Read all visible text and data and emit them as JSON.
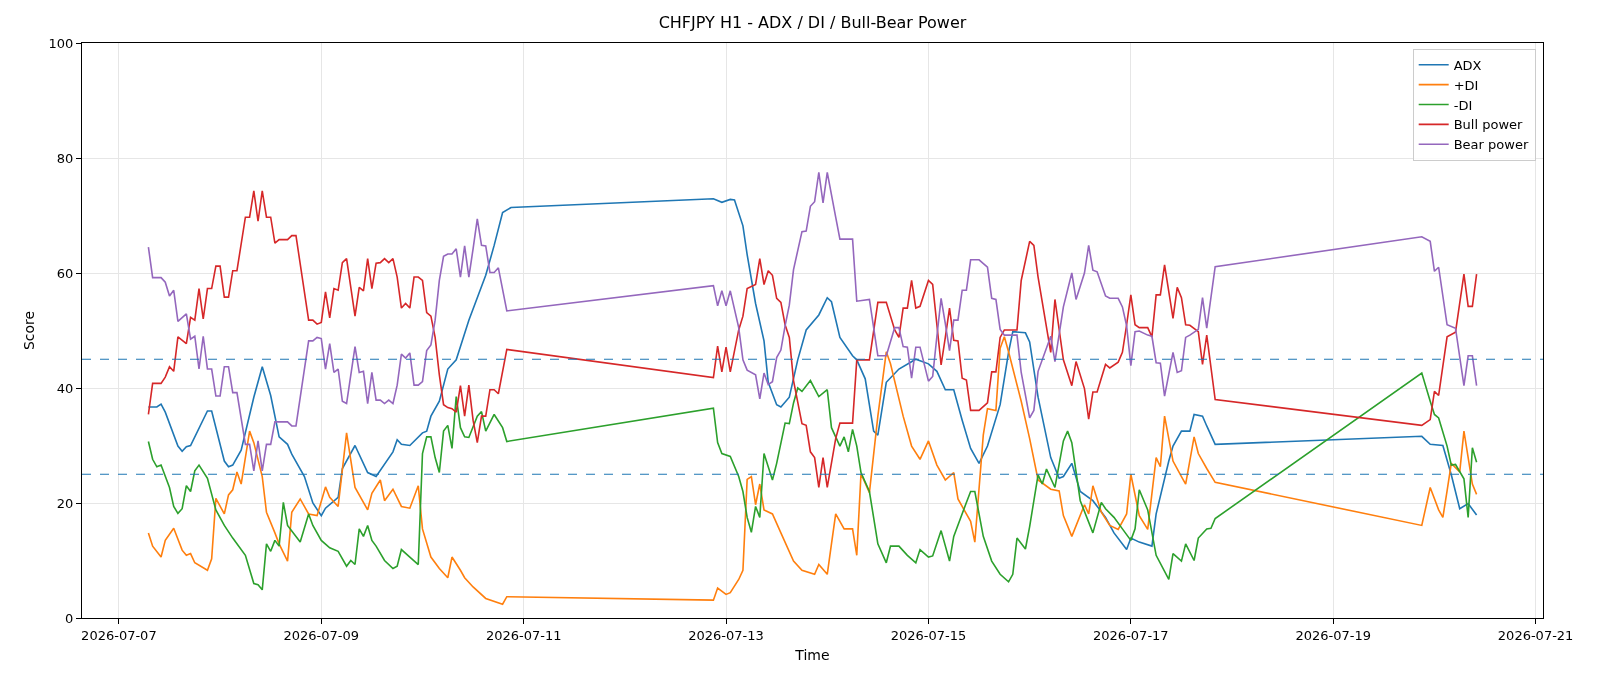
{
  "chart_data": {
    "type": "line",
    "title": "CHFJPY H1 - ADX / DI / Bull-Bear Power",
    "xlabel": "Time",
    "ylabel": "Score",
    "xlim": [
      "2026-07-06T15:15",
      "2026-07-21T01:45"
    ],
    "xticks": [
      "2026-07-07",
      "2026-07-09",
      "2026-07-11",
      "2026-07-13",
      "2026-07-15",
      "2026-07-17",
      "2026-07-19",
      "2026-07-21"
    ],
    "ylim": [
      0,
      100
    ],
    "yticks": [
      0,
      20,
      40,
      60,
      80,
      100
    ],
    "grid": true,
    "legend": "top right",
    "marker": "none",
    "line_style": "solid",
    "ref_lines": [
      {
        "axis": "y",
        "value": 45,
        "color": "#1f77b4",
        "line_style": "dashed"
      },
      {
        "axis": "y",
        "value": 25,
        "color": "#1f77b4",
        "line_style": "dashed"
      }
    ],
    "x": [
      "2026-07-07T07:00",
      "2026-07-07T08:00",
      "2026-07-07T10:00",
      "2026-07-07T11:00",
      "2026-07-07T12:00",
      "2026-07-07T13:00",
      "2026-07-07T14:00",
      "2026-07-07T16:00",
      "2026-07-07T17:00",
      "2026-07-07T18:00",
      "2026-07-07T19:00",
      "2026-07-07T20:00",
      "2026-07-07T21:00",
      "2026-07-07T22:00",
      "2026-07-07T23:00",
      "2026-07-08T00:00",
      "2026-07-08T01:00",
      "2026-07-08T02:00",
      "2026-07-08T03:00",
      "2026-07-08T04:00",
      "2026-07-08T06:00",
      "2026-07-08T07:00",
      "2026-07-08T08:00",
      "2026-07-08T09:00",
      "2026-07-08T10:00",
      "2026-07-08T11:00",
      "2026-07-08T12:00",
      "2026-07-08T13:00",
      "2026-07-08T14:00",
      "2026-07-08T16:00",
      "2026-07-08T17:00",
      "2026-07-08T18:00",
      "2026-07-08T21:00",
      "2026-07-08T22:00",
      "2026-07-08T23:00",
      "2026-07-09T00:00",
      "2026-07-09T01:00",
      "2026-07-09T02:00",
      "2026-07-09T03:00",
      "2026-07-09T04:00",
      "2026-07-09T05:00",
      "2026-07-09T06:00",
      "2026-07-09T08:00",
      "2026-07-09T09:00",
      "2026-07-09T10:00",
      "2026-07-09T11:00",
      "2026-07-09T12:00",
      "2026-07-09T13:00",
      "2026-07-09T14:00",
      "2026-07-09T15:00",
      "2026-07-09T16:00",
      "2026-07-09T17:00",
      "2026-07-09T18:00",
      "2026-07-09T19:00",
      "2026-07-09T20:00",
      "2026-07-09T21:00",
      "2026-07-09T22:00",
      "2026-07-09T23:00",
      "2026-07-10T00:00",
      "2026-07-10T01:00",
      "2026-07-10T02:00",
      "2026-07-10T03:00",
      "2026-07-10T04:00",
      "2026-07-10T05:00",
      "2026-07-10T06:00",
      "2026-07-10T07:00",
      "2026-07-10T08:00",
      "2026-07-10T09:00",
      "2026-07-10T10:00",
      "2026-07-10T11:00",
      "2026-07-10T12:00",
      "2026-07-10T13:00",
      "2026-07-10T14:00",
      "2026-07-10T15:00",
      "2026-07-10T16:00",
      "2026-07-10T17:00",
      "2026-07-10T18:00",
      "2026-07-10T20:00",
      "2026-07-12T21:00",
      "2026-07-12T22:00",
      "2026-07-12T23:00",
      "2026-07-13T00:00",
      "2026-07-13T01:00",
      "2026-07-13T03:00",
      "2026-07-13T04:00",
      "2026-07-13T05:00",
      "2026-07-13T07:00",
      "2026-07-13T08:00",
      "2026-07-13T09:00",
      "2026-07-13T10:00",
      "2026-07-13T11:00",
      "2026-07-13T12:00",
      "2026-07-13T13:00",
      "2026-07-13T14:00",
      "2026-07-13T15:00",
      "2026-07-13T16:00",
      "2026-07-13T18:00",
      "2026-07-13T19:00",
      "2026-07-13T20:00",
      "2026-07-13T21:00",
      "2026-07-13T22:00",
      "2026-07-13T23:00",
      "2026-07-14T00:00",
      "2026-07-14T02:00",
      "2026-07-14T03:00",
      "2026-07-14T06:00",
      "2026-07-14T07:00",
      "2026-07-14T10:00",
      "2026-07-14T12:00",
      "2026-07-14T14:00",
      "2026-07-14T16:00",
      "2026-07-14T17:00",
      "2026-07-14T18:00",
      "2026-07-14T19:00",
      "2026-07-14T20:00",
      "2026-07-14T21:00",
      "2026-07-14T22:00",
      "2026-07-15T00:00",
      "2026-07-15T01:00",
      "2026-07-15T02:00",
      "2026-07-15T03:00",
      "2026-07-15T04:00",
      "2026-07-15T05:00",
      "2026-07-15T06:00",
      "2026-07-15T07:00",
      "2026-07-15T08:00",
      "2026-07-15T09:00",
      "2026-07-15T10:00",
      "2026-07-15T12:00",
      "2026-07-15T14:00",
      "2026-07-15T15:00",
      "2026-07-15T16:00",
      "2026-07-15T17:00",
      "2026-07-15T18:00",
      "2026-07-15T21:00",
      "2026-07-15T22:00",
      "2026-07-16T00:00",
      "2026-07-16T01:00",
      "2026-07-16T02:00",
      "2026-07-16T05:00",
      "2026-07-16T06:00",
      "2026-07-16T08:00",
      "2026-07-16T10:00",
      "2026-07-16T11:00",
      "2026-07-16T13:00",
      "2026-07-16T14:00",
      "2026-07-16T15:00",
      "2026-07-16T16:00",
      "2026-07-16T18:00",
      "2026-07-16T19:00",
      "2026-07-16T21:00",
      "2026-07-16T22:00",
      "2026-07-16T23:00",
      "2026-07-17T00:00",
      "2026-07-17T01:00",
      "2026-07-17T02:00",
      "2026-07-17T04:00",
      "2026-07-17T05:00",
      "2026-07-17T06:00",
      "2026-07-17T07:00",
      "2026-07-17T08:00",
      "2026-07-17T10:00",
      "2026-07-17T11:00",
      "2026-07-17T12:00",
      "2026-07-17T13:00",
      "2026-07-17T14:00",
      "2026-07-17T16:00",
      "2026-07-17T17:00",
      "2026-07-17T18:00",
      "2026-07-17T20:00",
      "2026-07-19T21:00",
      "2026-07-19T23:00",
      "2026-07-20T00:00",
      "2026-07-20T01:00",
      "2026-07-20T03:00",
      "2026-07-20T05:00",
      "2026-07-20T07:00",
      "2026-07-20T08:00",
      "2026-07-20T09:00",
      "2026-07-20T10:00"
    ],
    "series": [
      {
        "name": "ADX",
        "color": "#1f77b4",
        "x": [
          "2026-07-07T07:00",
          "2026-07-07T09:00",
          "2026-07-07T10:00",
          "2026-07-07T11:00",
          "2026-07-07T14:00",
          "2026-07-07T15:00",
          "2026-07-07T16:00",
          "2026-07-07T17:00",
          "2026-07-07T21:00",
          "2026-07-07T22:00",
          "2026-07-08T01:00",
          "2026-07-08T02:00",
          "2026-07-08T03:00",
          "2026-07-08T05:00",
          "2026-07-08T08:00",
          "2026-07-08T10:00",
          "2026-07-08T12:00",
          "2026-07-08T14:00",
          "2026-07-08T16:00",
          "2026-07-08T17:00",
          "2026-07-08T20:00",
          "2026-07-08T22:00",
          "2026-07-09T00:00",
          "2026-07-09T01:00",
          "2026-07-09T04:00",
          "2026-07-09T05:00",
          "2026-07-09T08:00",
          "2026-07-09T11:00",
          "2026-07-09T13:00",
          "2026-07-09T17:00",
          "2026-07-09T18:00",
          "2026-07-09T19:00",
          "2026-07-09T21:00",
          "2026-07-10T00:00",
          "2026-07-10T01:00",
          "2026-07-10T02:00",
          "2026-07-10T04:00",
          "2026-07-10T06:00",
          "2026-07-10T08:00",
          "2026-07-10T11:00",
          "2026-07-10T15:00",
          "2026-07-10T17:00",
          "2026-07-10T19:00",
          "2026-07-10T21:00",
          "2026-07-12T21:00",
          "2026-07-12T23:00",
          "2026-07-13T01:00",
          "2026-07-13T02:00",
          "2026-07-13T04:00",
          "2026-07-13T05:00",
          "2026-07-13T07:00",
          "2026-07-13T09:00",
          "2026-07-13T10:00",
          "2026-07-13T12:00",
          "2026-07-13T13:00",
          "2026-07-13T15:00",
          "2026-07-13T17:00",
          "2026-07-13T19:00",
          "2026-07-13T22:00",
          "2026-07-14T00:00",
          "2026-07-14T01:00",
          "2026-07-14T03:00",
          "2026-07-14T06:00",
          "2026-07-14T07:00",
          "2026-07-14T09:00",
          "2026-07-14T11:00",
          "2026-07-14T12:00",
          "2026-07-14T14:00",
          "2026-07-14T17:00",
          "2026-07-14T21:00",
          "2026-07-15T00:00",
          "2026-07-15T02:00",
          "2026-07-15T04:00",
          "2026-07-15T06:00",
          "2026-07-15T08:00",
          "2026-07-15T10:00",
          "2026-07-15T12:00",
          "2026-07-15T14:00",
          "2026-07-15T17:00",
          "2026-07-15T19:00",
          "2026-07-15T20:00",
          "2026-07-15T23:00",
          "2026-07-16T00:00",
          "2026-07-16T02:00",
          "2026-07-16T05:00",
          "2026-07-16T07:00",
          "2026-07-16T08:00",
          "2026-07-16T10:00",
          "2026-07-16T12:00",
          "2026-07-16T15:00",
          "2026-07-16T18:00",
          "2026-07-16T20:00",
          "2026-07-16T23:00",
          "2026-07-17T00:00",
          "2026-07-17T02:00",
          "2026-07-17T05:00",
          "2026-07-17T06:00",
          "2026-07-17T09:00",
          "2026-07-17T10:00",
          "2026-07-17T12:00",
          "2026-07-17T14:00",
          "2026-07-17T15:00",
          "2026-07-17T17:00",
          "2026-07-17T18:00",
          "2026-07-17T20:00",
          "2026-07-19T21:00",
          "2026-07-19T23:00",
          "2026-07-20T02:00",
          "2026-07-20T04:00",
          "2026-07-20T06:00",
          "2026-07-20T08:00",
          "2026-07-20T10:00"
        ],
        "values": [
          36.7,
          36.7,
          37.2,
          35.8,
          29.9,
          29,
          29.8,
          30,
          36,
          36,
          27.3,
          26.3,
          26.6,
          29.2,
          38.4,
          43.7,
          38.7,
          31.5,
          30.2,
          28.5,
          24.6,
          20,
          17.8,
          19.1,
          21,
          26,
          30,
          25.3,
          24.6,
          28.9,
          31,
          30.2,
          30,
          32.2,
          32.5,
          35.1,
          37.7,
          43.3,
          44.9,
          51.8,
          59.6,
          64.8,
          70.5,
          71.4,
          72.9,
          72.3,
          72.8,
          72.7,
          68.2,
          63.2,
          54.7,
          48.2,
          41,
          37.1,
          36.7,
          38.4,
          44.9,
          50.1,
          52.7,
          55.7,
          55,
          48.8,
          45.6,
          44.9,
          41.6,
          32.5,
          31.8,
          41,
          43.3,
          45,
          44.2,
          42.9,
          39.7,
          39.7,
          34.4,
          29.5,
          26.9,
          29.9,
          37.1,
          46.2,
          49.8,
          49.6,
          48,
          38.4,
          27.9,
          24.3,
          24.6,
          26.9,
          22,
          20.4,
          17.5,
          14.8,
          11.9,
          13.9,
          13.2,
          12.5,
          18.1,
          27.3,
          29.9,
          32.5,
          32.5,
          35.4,
          35.1,
          33.4,
          30.2,
          31.6,
          30.2,
          30,
          24.9,
          19,
          19.9,
          17.9
        ]
      },
      {
        "name": "+DI",
        "color": "#ff7f0e",
        "x": [
          "2026-07-07T07:00",
          "2026-07-07T08:00",
          "2026-07-07T10:00",
          "2026-07-07T11:00",
          "2026-07-07T13:00",
          "2026-07-07T15:00",
          "2026-07-07T16:00",
          "2026-07-07T17:00",
          "2026-07-07T18:00",
          "2026-07-07T21:00",
          "2026-07-07T22:00",
          "2026-07-07T23:00",
          "2026-07-08T01:00",
          "2026-07-08T02:00",
          "2026-07-08T03:00",
          "2026-07-08T04:00",
          "2026-07-08T05:00",
          "2026-07-08T07:00",
          "2026-07-08T08:00",
          "2026-07-08T10:00",
          "2026-07-08T11:00",
          "2026-07-08T13:00",
          "2026-07-08T14:00",
          "2026-07-08T16:00",
          "2026-07-08T17:00",
          "2026-07-08T19:00",
          "2026-07-08T21:00",
          "2026-07-08T23:00",
          "2026-07-09T01:00",
          "2026-07-09T02:00",
          "2026-07-09T04:00",
          "2026-07-09T06:00",
          "2026-07-09T08:00",
          "2026-07-09T11:00",
          "2026-07-09T12:00",
          "2026-07-09T14:00",
          "2026-07-09T15:00",
          "2026-07-09T17:00",
          "2026-07-09T19:00",
          "2026-07-09T21:00",
          "2026-07-09T23:00",
          "2026-07-10T00:00",
          "2026-07-10T02:00",
          "2026-07-10T04:00",
          "2026-07-10T06:00",
          "2026-07-10T07:00",
          "2026-07-10T09:00",
          "2026-07-10T10:00",
          "2026-07-10T12:00",
          "2026-07-10T15:00",
          "2026-07-10T19:00",
          "2026-07-10T20:00",
          "2026-07-12T21:00",
          "2026-07-12T22:00",
          "2026-07-13T00:00",
          "2026-07-13T01:00",
          "2026-07-13T03:00",
          "2026-07-13T04:00",
          "2026-07-13T05:00",
          "2026-07-13T06:00",
          "2026-07-13T07:00",
          "2026-07-13T08:00",
          "2026-07-13T09:00",
          "2026-07-13T11:00",
          "2026-07-13T13:00",
          "2026-07-13T16:00",
          "2026-07-13T18:00",
          "2026-07-13T21:00",
          "2026-07-13T22:00",
          "2026-07-14T00:00",
          "2026-07-14T01:00",
          "2026-07-14T02:00",
          "2026-07-14T04:00",
          "2026-07-14T06:00",
          "2026-07-14T07:00",
          "2026-07-14T08:00",
          "2026-07-14T10:00",
          "2026-07-14T12:00",
          "2026-07-14T14:00",
          "2026-07-14T15:00",
          "2026-07-14T18:00",
          "2026-07-14T20:00",
          "2026-07-14T22:00",
          "2026-07-15T00:00",
          "2026-07-15T02:00",
          "2026-07-15T04:00",
          "2026-07-15T06:00",
          "2026-07-15T07:00",
          "2026-07-15T10:00",
          "2026-07-15T11:00",
          "2026-07-15T13:00",
          "2026-07-15T14:00",
          "2026-07-15T16:00",
          "2026-07-15T17:00",
          "2026-07-15T18:00",
          "2026-07-15T19:00",
          "2026-07-15T22:00",
          "2026-07-16T00:00",
          "2026-07-16T02:00",
          "2026-07-16T05:00",
          "2026-07-16T07:00",
          "2026-07-16T08:00",
          "2026-07-16T10:00",
          "2026-07-16T13:00",
          "2026-07-16T14:00",
          "2026-07-16T15:00",
          "2026-07-16T17:00",
          "2026-07-16T19:00",
          "2026-07-16T21:00",
          "2026-07-16T23:00",
          "2026-07-17T00:00",
          "2026-07-17T02:00",
          "2026-07-17T04:00",
          "2026-07-17T06:00",
          "2026-07-17T07:00",
          "2026-07-17T08:00",
          "2026-07-17T10:00",
          "2026-07-17T12:00",
          "2026-07-17T13:00",
          "2026-07-17T15:00",
          "2026-07-17T16:00",
          "2026-07-17T18:00",
          "2026-07-17T20:00",
          "2026-07-19T21:00",
          "2026-07-19T23:00",
          "2026-07-20T01:00",
          "2026-07-20T02:00",
          "2026-07-20T03:00",
          "2026-07-20T04:00",
          "2026-07-20T06:00",
          "2026-07-20T07:00",
          "2026-07-20T09:00",
          "2026-07-20T10:00"
        ],
        "values": [
          14.8,
          12.5,
          10.6,
          13.5,
          15.6,
          11.8,
          10.9,
          11.2,
          9.6,
          8.3,
          10.3,
          20.8,
          18.1,
          21.4,
          22.3,
          25.4,
          23.3,
          32.5,
          30.5,
          24.6,
          18.4,
          14.8,
          12.9,
          9.9,
          18.4,
          20.7,
          18.1,
          17.8,
          22.8,
          21,
          19.4,
          32.2,
          22.7,
          18.8,
          21.7,
          24,
          20.4,
          22.4,
          19.4,
          19.1,
          23,
          15.5,
          10.6,
          8.6,
          7,
          10.6,
          8.3,
          7,
          5.4,
          3.4,
          2.4,
          3.7,
          3.1,
          5.2,
          4.1,
          4.4,
          6.7,
          8.3,
          24.1,
          24.6,
          19.7,
          23.3,
          18.8,
          18.1,
          14.8,
          9.9,
          8.3,
          7.6,
          9.3,
          7.6,
          12.9,
          18.1,
          15.5,
          15.5,
          10.9,
          25.1,
          21.8,
          35.1,
          46.3,
          44.2,
          35.1,
          29.9,
          27.6,
          30.8,
          26.6,
          24,
          25.3,
          20.7,
          16.8,
          13.2,
          31.8,
          36.4,
          36.1,
          46.9,
          48.9,
          46.3,
          37.7,
          31.2,
          24,
          22.4,
          22.1,
          17.8,
          14.2,
          19.7,
          18.1,
          23,
          18.4,
          16.1,
          15.4,
          18.1,
          25,
          17.8,
          15.4,
          27.9,
          26.3,
          35.1,
          27.3,
          24.6,
          23.3,
          31.5,
          28.6,
          26,
          23.6,
          16.1,
          22.7,
          18.8,
          17.5,
          22.1,
          26.9,
          25.4,
          32.5,
          23.3,
          21.5
        ]
      },
      {
        "name": "-DI",
        "color": "#2ca02c",
        "x": [
          "2026-07-07T07:00",
          "2026-07-07T08:00",
          "2026-07-07T09:00",
          "2026-07-07T10:00",
          "2026-07-07T12:00",
          "2026-07-07T13:00",
          "2026-07-07T14:00",
          "2026-07-07T15:00",
          "2026-07-07T16:00",
          "2026-07-07T17:00",
          "2026-07-07T18:00",
          "2026-07-07T19:00",
          "2026-07-07T21:00",
          "2026-07-07T23:00",
          "2026-07-08T01:00",
          "2026-07-08T03:00",
          "2026-07-08T06:00",
          "2026-07-08T08:00",
          "2026-07-08T09:00",
          "2026-07-08T10:00",
          "2026-07-08T11:00",
          "2026-07-08T12:00",
          "2026-07-08T13:00",
          "2026-07-08T14:00",
          "2026-07-08T15:00",
          "2026-07-08T16:00",
          "2026-07-08T19:00",
          "2026-07-08T21:00",
          "2026-07-08T22:00",
          "2026-07-09T00:00",
          "2026-07-09T02:00",
          "2026-07-09T04:00",
          "2026-07-09T06:00",
          "2026-07-09T07:00",
          "2026-07-09T08:00",
          "2026-07-09T09:00",
          "2026-07-09T10:00",
          "2026-07-09T11:00",
          "2026-07-09T12:00",
          "2026-07-09T13:00",
          "2026-07-09T15:00",
          "2026-07-09T17:00",
          "2026-07-09T18:00",
          "2026-07-09T19:00",
          "2026-07-09T21:00",
          "2026-07-09T23:00",
          "2026-07-10T00:00",
          "2026-07-10T01:00",
          "2026-07-10T02:00",
          "2026-07-10T03:00",
          "2026-07-10T04:00",
          "2026-07-10T05:00",
          "2026-07-10T06:00",
          "2026-07-10T07:00",
          "2026-07-10T08:00",
          "2026-07-10T09:00",
          "2026-07-10T10:00",
          "2026-07-10T11:00",
          "2026-07-10T13:00",
          "2026-07-10T14:00",
          "2026-07-10T15:00",
          "2026-07-10T17:00",
          "2026-07-10T19:00",
          "2026-07-10T20:00",
          "2026-07-12T21:00",
          "2026-07-12T22:00",
          "2026-07-12T23:00",
          "2026-07-13T01:00",
          "2026-07-13T03:00",
          "2026-07-13T04:00",
          "2026-07-13T05:00",
          "2026-07-13T06:00",
          "2026-07-13T07:00",
          "2026-07-13T08:00",
          "2026-07-13T09:00",
          "2026-07-13T11:00",
          "2026-07-13T12:00",
          "2026-07-13T14:00",
          "2026-07-13T15:00",
          "2026-07-13T16:00",
          "2026-07-13T17:00",
          "2026-07-13T18:00",
          "2026-07-13T20:00",
          "2026-07-13T22:00",
          "2026-07-14T00:00",
          "2026-07-14T01:00",
          "2026-07-14T03:00",
          "2026-07-14T04:00",
          "2026-07-14T05:00",
          "2026-07-14T06:00",
          "2026-07-14T07:00",
          "2026-07-14T08:00",
          "2026-07-14T10:00",
          "2026-07-14T12:00",
          "2026-07-14T14:00",
          "2026-07-14T15:00",
          "2026-07-14T17:00",
          "2026-07-14T19:00",
          "2026-07-14T21:00",
          "2026-07-14T22:00",
          "2026-07-15T00:00",
          "2026-07-15T01:00",
          "2026-07-15T03:00",
          "2026-07-15T05:00",
          "2026-07-15T06:00",
          "2026-07-15T09:00",
          "2026-07-15T10:00",
          "2026-07-15T11:00",
          "2026-07-15T13:00",
          "2026-07-15T15:00",
          "2026-07-15T17:00",
          "2026-07-15T19:00",
          "2026-07-15T20:00",
          "2026-07-15T21:00",
          "2026-07-15T23:00",
          "2026-07-16T00:00",
          "2026-07-16T02:00",
          "2026-07-16T03:00",
          "2026-07-16T04:00",
          "2026-07-16T06:00",
          "2026-07-16T08:00",
          "2026-07-16T09:00",
          "2026-07-16T10:00",
          "2026-07-16T12:00",
          "2026-07-16T15:00",
          "2026-07-16T17:00",
          "2026-07-16T18:00",
          "2026-07-16T20:00",
          "2026-07-16T22:00",
          "2026-07-17T00:00",
          "2026-07-17T01:00",
          "2026-07-17T02:00",
          "2026-07-17T04:00",
          "2026-07-17T06:00",
          "2026-07-17T09:00",
          "2026-07-17T10:00",
          "2026-07-17T12:00",
          "2026-07-17T13:00",
          "2026-07-17T15:00",
          "2026-07-17T16:00",
          "2026-07-17T18:00",
          "2026-07-17T19:00",
          "2026-07-17T20:00",
          "2026-07-19T21:00",
          "2026-07-19T23:00",
          "2026-07-20T00:00",
          "2026-07-20T01:00",
          "2026-07-20T03:00",
          "2026-07-20T04:00",
          "2026-07-20T05:00",
          "2026-07-20T07:00",
          "2026-07-20T08:00",
          "2026-07-20T09:00",
          "2026-07-20T10:00"
        ],
        "values": [
          30.7,
          27.6,
          26.3,
          26.6,
          22.7,
          19.4,
          18.2,
          19,
          23,
          22,
          25.6,
          26.6,
          24.3,
          18.8,
          16.1,
          13.9,
          10.9,
          6,
          5.8,
          4.9,
          12.9,
          11.6,
          13.5,
          12.5,
          20.1,
          16.1,
          13.2,
          18.1,
          16.1,
          13.5,
          12.2,
          11.6,
          9,
          10,
          9.3,
          15.5,
          14.2,
          16.1,
          13.5,
          12.5,
          10,
          8.6,
          9,
          11.9,
          10.6,
          9.3,
          28.6,
          31.5,
          31.5,
          27.9,
          25.3,
          32.5,
          33.5,
          29.5,
          38.5,
          33.1,
          31.5,
          31.4,
          35.1,
          35.9,
          32.5,
          35.4,
          33.1,
          30.7,
          36.5,
          30.5,
          28.6,
          28.1,
          24.6,
          22,
          17.5,
          14.9,
          19.4,
          17.5,
          28.6,
          24,
          26.9,
          33.9,
          33.8,
          37.4,
          40,
          39.4,
          41.3,
          38.5,
          39.7,
          33.1,
          29.9,
          31.5,
          28.9,
          32.8,
          29.9,
          25.3,
          22,
          12.9,
          9.6,
          12.5,
          12.5,
          10.9,
          9.6,
          11.9,
          10.6,
          10.8,
          15.2,
          9.9,
          14.2,
          20.1,
          22,
          22,
          14.2,
          9.9,
          7.6,
          6.3,
          7.6,
          13.9,
          12,
          15.9,
          24.9,
          23.3,
          25.9,
          22.7,
          30.8,
          32.5,
          30.5,
          20.4,
          14.8,
          20.1,
          19,
          17.5,
          15.5,
          13.5,
          15.5,
          22.3,
          18.8,
          10.9,
          6.7,
          11.2,
          9.9,
          12.9,
          10,
          13.9,
          15.5,
          15.6,
          17.3,
          42.6,
          37.7,
          35.4,
          34.8,
          29.9,
          26.6,
          26.7,
          24.2,
          17.5,
          29.6,
          27.1
        ]
      },
      {
        "name": "Bull power",
        "color": "#d62728",
        "values": [
          35.4,
          40.8,
          40.8,
          41.9,
          43.7,
          42.9,
          48.9,
          47.7,
          52.3,
          51.8,
          57.3,
          52,
          57.3,
          57.3,
          61.2,
          61.2,
          55.8,
          55.8,
          60.4,
          60.4,
          69.7,
          69.7,
          74.3,
          69,
          74.3,
          69.7,
          69.7,
          65.2,
          65.8,
          65.8,
          66.5,
          66.5,
          51.8,
          51.8,
          51.1,
          51.4,
          56.7,
          52.2,
          57.3,
          57,
          61.8,
          62.5,
          52.5,
          57.5,
          56.9,
          62.5,
          57.3,
          61.7,
          61.8,
          62.5,
          61.8,
          62.5,
          59.3,
          53.9,
          54.7,
          53.9,
          59.3,
          59.3,
          58.7,
          53.1,
          52.5,
          48.8,
          42.3,
          37.1,
          36.6,
          36.4,
          35.8,
          40.4,
          35.1,
          40.5,
          34.4,
          30.5,
          35.1,
          35.1,
          39.7,
          39.7,
          39,
          46.7,
          41.8,
          47.3,
          42.8,
          47.1,
          42.8,
          50.1,
          52.5,
          57.3,
          58,
          62.5,
          58,
          60.4,
          59.6,
          55.6,
          54.9,
          51,
          48.8,
          41.3,
          33.8,
          33.5,
          28.9,
          27.9,
          22.7,
          27.9,
          22.7,
          31.2,
          33.9,
          33.9,
          44.9,
          44.9,
          54.9,
          54.9,
          50.1,
          48.8,
          53.9,
          53.9,
          58.7,
          53.9,
          54.2,
          58.7,
          58,
          51,
          44,
          48.8,
          53.9,
          48.3,
          48.2,
          41.7,
          41.4,
          36.1,
          36.1,
          37.4,
          42.8,
          42.8,
          48.8,
          50.1,
          50.1,
          58.7,
          65.5,
          64.8,
          59.3,
          46.2,
          55.4,
          44.9,
          40.4,
          44.6,
          39.9,
          34.6,
          39.3,
          39.3,
          44.1,
          43.5,
          44.5,
          46.2,
          51,
          56.2,
          51,
          50.5,
          50.5,
          48.9,
          56.2,
          56.2,
          61.4,
          52.1,
          57.5,
          55.7,
          51,
          50.9,
          49.8,
          44.1,
          49.2,
          38,
          33.5,
          34.5,
          39.4,
          38.7,
          48.9,
          49.7,
          59.8,
          54.2,
          54.2,
          59.8
        ]
      },
      {
        "name": "Bear power",
        "color": "#9467bd",
        "values": [
          64.5,
          59.2,
          59.2,
          58.4,
          56,
          57,
          51.6,
          52.9,
          48.5,
          49,
          43.3,
          49,
          43.3,
          43.3,
          38.6,
          38.6,
          43.7,
          43.7,
          39.2,
          39.2,
          30.2,
          30.2,
          25.6,
          30.8,
          25.6,
          30.2,
          30.2,
          34.1,
          34.1,
          34.1,
          33.4,
          33.4,
          48.2,
          48.2,
          48.8,
          48.6,
          43.3,
          47.7,
          42.7,
          43.3,
          37.7,
          37.3,
          47.2,
          42.7,
          42.9,
          37.3,
          42.7,
          37.9,
          37.9,
          37.3,
          37.9,
          37.3,
          40.5,
          45.9,
          45.2,
          46.1,
          40.5,
          40.5,
          41.1,
          46.5,
          47.5,
          51.8,
          58.7,
          62.9,
          63.3,
          63.3,
          64.2,
          59.3,
          64.7,
          59.3,
          64.2,
          69.4,
          64.8,
          64.7,
          60.1,
          60.1,
          60.9,
          53.4,
          57.8,
          54.3,
          56.9,
          54.3,
          56.9,
          50.5,
          44.9,
          43.1,
          42.3,
          38.1,
          42.6,
          40.6,
          41.1,
          45.3,
          46.6,
          50.8,
          54.4,
          60.6,
          67.2,
          67.3,
          71.6,
          72.4,
          77.5,
          72.2,
          77.5,
          69.7,
          65.9,
          65.9,
          55.1,
          55.4,
          45.6,
          45.6,
          50.5,
          50.5,
          47.2,
          47.1,
          41.7,
          47.1,
          47.1,
          41.2,
          42,
          49,
          55.6,
          51.2,
          46.5,
          51.8,
          51.8,
          57,
          57,
          62.3,
          62.3,
          61,
          55.6,
          55.4,
          50.2,
          49.2,
          49.2,
          42.7,
          34.8,
          36.1,
          42.9,
          49,
          44.6,
          54.1,
          60,
          55.4,
          60,
          64.8,
          60.5,
          60.2,
          56,
          55.6,
          55.6,
          54.1,
          50.8,
          43.9,
          49.8,
          49.9,
          49.2,
          49,
          44.4,
          44.3,
          38.6,
          46.2,
          42.7,
          43,
          48.8,
          49.2,
          50.2,
          55.7,
          50.4,
          61.1,
          66.3,
          65.5,
          60.3,
          61,
          51,
          50.4,
          40.4,
          45.6,
          45.6,
          40.4
        ]
      }
    ]
  }
}
